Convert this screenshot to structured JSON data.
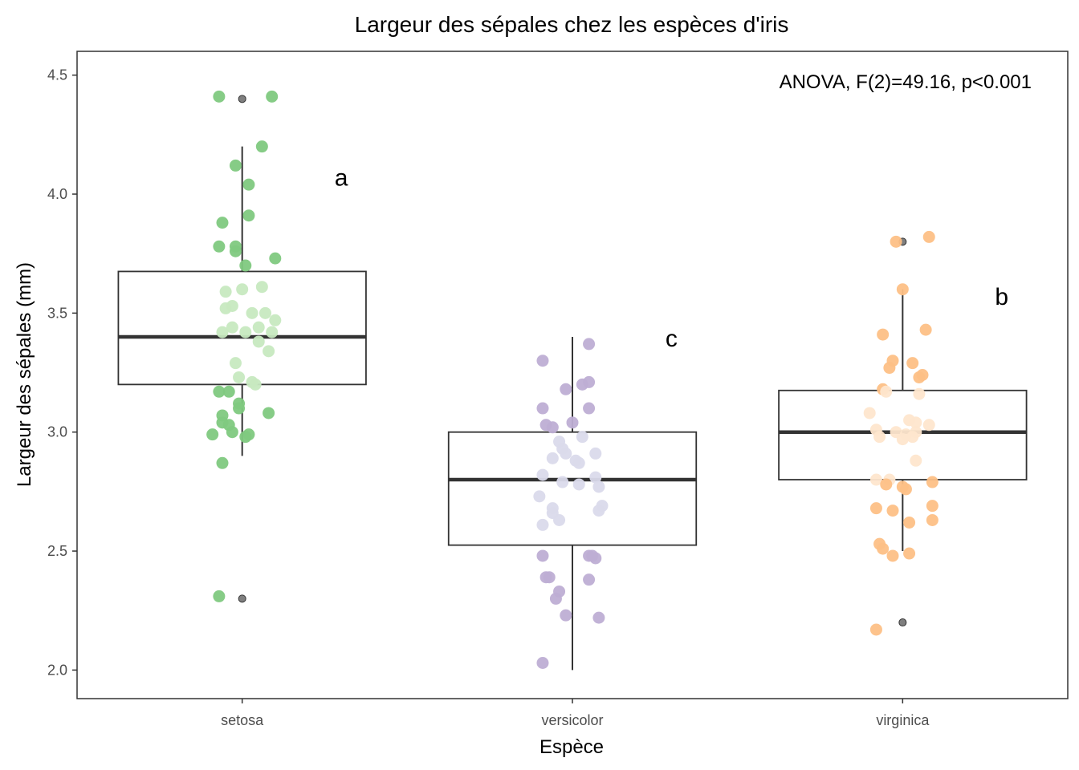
{
  "chart_data": {
    "type": "boxplot",
    "title": "Largeur des sépales chez les espèces d'iris",
    "xlabel": "Espèce",
    "ylabel": "Largeur des sépales (mm)",
    "ylim": [
      1.88,
      4.6
    ],
    "yticks": [
      2.0,
      2.5,
      3.0,
      3.5,
      4.0,
      4.5
    ],
    "ytick_labels": [
      "2.0",
      "2.5",
      "3.0",
      "3.5",
      "4.0",
      "4.5"
    ],
    "grid": false,
    "annotation": "ANOVA, F(2)=49.16, p<0.001",
    "categories": [
      "setosa",
      "versicolor",
      "virginica"
    ],
    "series": [
      {
        "category": "setosa",
        "color_dark": "#7fc97f",
        "color_light": "#c7e9c0",
        "q1": 3.2,
        "median": 3.4,
        "q3": 3.675,
        "whisker_low": 2.9,
        "whisker_high": 4.2,
        "outliers": [
          4.4,
          2.3
        ],
        "letter": "a",
        "points": [
          [
            -0.07,
            4.41
          ],
          [
            0.09,
            4.41
          ],
          [
            0.06,
            4.2
          ],
          [
            -0.02,
            4.12
          ],
          [
            0.02,
            4.04
          ],
          [
            0.02,
            3.91
          ],
          [
            -0.06,
            3.88
          ],
          [
            -0.07,
            3.78
          ],
          [
            -0.02,
            3.78
          ],
          [
            -0.02,
            3.76
          ],
          [
            0.1,
            3.73
          ],
          [
            0.01,
            3.7
          ],
          [
            -0.05,
            3.59
          ],
          [
            0.0,
            3.6
          ],
          [
            0.06,
            3.61
          ],
          [
            -0.05,
            3.52
          ],
          [
            -0.03,
            3.53
          ],
          [
            0.03,
            3.5
          ],
          [
            0.07,
            3.5
          ],
          [
            0.1,
            3.47
          ],
          [
            -0.06,
            3.42
          ],
          [
            -0.03,
            3.44
          ],
          [
            0.01,
            3.42
          ],
          [
            0.05,
            3.44
          ],
          [
            0.09,
            3.42
          ],
          [
            0.05,
            3.38
          ],
          [
            0.08,
            3.34
          ],
          [
            -0.02,
            3.29
          ],
          [
            -0.01,
            3.23
          ],
          [
            0.03,
            3.21
          ],
          [
            0.04,
            3.2
          ],
          [
            -0.07,
            3.17
          ],
          [
            -0.04,
            3.17
          ],
          [
            -0.01,
            3.12
          ],
          [
            -0.01,
            3.1
          ],
          [
            0.08,
            3.08
          ],
          [
            -0.06,
            3.07
          ],
          [
            -0.06,
            3.04
          ],
          [
            -0.04,
            3.03
          ],
          [
            -0.03,
            3.0
          ],
          [
            -0.09,
            2.99
          ],
          [
            0.02,
            2.99
          ],
          [
            0.01,
            2.98
          ],
          [
            -0.06,
            2.87
          ],
          [
            -0.07,
            2.31
          ]
        ]
      },
      {
        "category": "versicolor",
        "color_dark": "#beaed4",
        "color_light": "#dadaeb",
        "q1": 2.525,
        "median": 2.8,
        "q3": 3.0,
        "whisker_low": 2.0,
        "whisker_high": 3.4,
        "outliers": [],
        "letter": "c",
        "points": [
          [
            0.05,
            3.37
          ],
          [
            -0.09,
            3.3
          ],
          [
            0.05,
            3.21
          ],
          [
            0.03,
            3.2
          ],
          [
            -0.02,
            3.18
          ],
          [
            0.05,
            3.1
          ],
          [
            -0.09,
            3.1
          ],
          [
            -0.08,
            3.03
          ],
          [
            -0.06,
            3.02
          ],
          [
            0.0,
            3.04
          ],
          [
            -0.04,
            2.96
          ],
          [
            0.03,
            2.98
          ],
          [
            -0.03,
            2.93
          ],
          [
            -0.02,
            2.91
          ],
          [
            0.07,
            2.91
          ],
          [
            -0.06,
            2.89
          ],
          [
            0.01,
            2.88
          ],
          [
            0.02,
            2.87
          ],
          [
            -0.09,
            2.82
          ],
          [
            0.07,
            2.81
          ],
          [
            0.08,
            2.77
          ],
          [
            -0.03,
            2.79
          ],
          [
            0.02,
            2.78
          ],
          [
            -0.1,
            2.73
          ],
          [
            0.09,
            2.69
          ],
          [
            0.08,
            2.67
          ],
          [
            -0.06,
            2.68
          ],
          [
            -0.06,
            2.66
          ],
          [
            -0.04,
            2.63
          ],
          [
            -0.09,
            2.61
          ],
          [
            0.07,
            2.47
          ],
          [
            -0.09,
            2.48
          ],
          [
            0.05,
            2.48
          ],
          [
            0.06,
            2.48
          ],
          [
            -0.08,
            2.39
          ],
          [
            -0.07,
            2.39
          ],
          [
            0.05,
            2.38
          ],
          [
            -0.04,
            2.33
          ],
          [
            -0.05,
            2.3
          ],
          [
            -0.02,
            2.23
          ],
          [
            0.08,
            2.22
          ],
          [
            -0.09,
            2.03
          ]
        ]
      },
      {
        "category": "virginica",
        "color_dark": "#fdc086",
        "color_light": "#fee6ce",
        "q1": 2.8,
        "median": 3.0,
        "q3": 3.175,
        "whisker_low": 2.5,
        "whisker_high": 3.6,
        "outliers": [
          3.8,
          2.2
        ],
        "letter": "b",
        "points": [
          [
            -0.02,
            3.8
          ],
          [
            0.08,
            3.82
          ],
          [
            0.0,
            3.6
          ],
          [
            0.07,
            3.43
          ],
          [
            -0.06,
            3.41
          ],
          [
            -0.03,
            3.3
          ],
          [
            -0.04,
            3.27
          ],
          [
            0.03,
            3.29
          ],
          [
            0.05,
            3.23
          ],
          [
            0.06,
            3.24
          ],
          [
            -0.06,
            3.18
          ],
          [
            -0.05,
            3.17
          ],
          [
            0.05,
            3.16
          ],
          [
            -0.1,
            3.08
          ],
          [
            0.02,
            3.05
          ],
          [
            0.04,
            3.04
          ],
          [
            0.08,
            3.03
          ],
          [
            -0.08,
            3.01
          ],
          [
            -0.02,
            3.0
          ],
          [
            0.04,
            3.0
          ],
          [
            -0.07,
            2.98
          ],
          [
            0.01,
            2.99
          ],
          [
            0.03,
            2.98
          ],
          [
            0.0,
            2.97
          ],
          [
            0.04,
            2.88
          ],
          [
            -0.08,
            2.8
          ],
          [
            -0.04,
            2.8
          ],
          [
            -0.05,
            2.78
          ],
          [
            0.0,
            2.77
          ],
          [
            0.09,
            2.79
          ],
          [
            0.01,
            2.76
          ],
          [
            -0.08,
            2.68
          ],
          [
            -0.03,
            2.67
          ],
          [
            0.09,
            2.69
          ],
          [
            0.09,
            2.63
          ],
          [
            0.02,
            2.62
          ],
          [
            -0.07,
            2.53
          ],
          [
            -0.06,
            2.51
          ],
          [
            -0.03,
            2.48
          ],
          [
            0.02,
            2.49
          ],
          [
            -0.08,
            2.17
          ]
        ]
      }
    ]
  }
}
